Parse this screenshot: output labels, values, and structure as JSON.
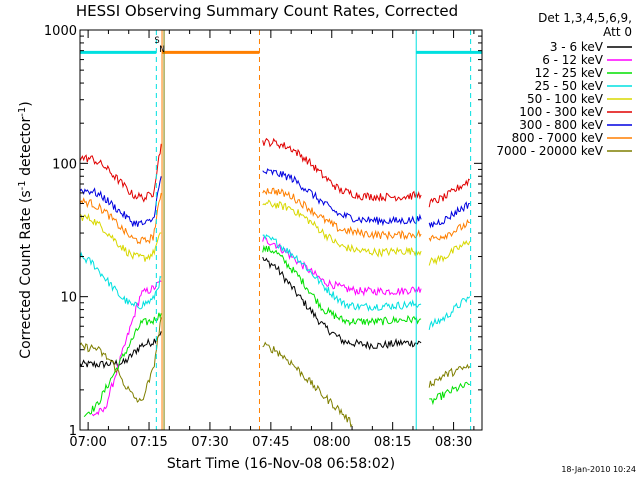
{
  "chart_data": {
    "type": "line",
    "title": "HESSI Observing Summary Count Rates, Corrected",
    "xlabel": "Start Time (16-Nov-08 06:58:02)",
    "ylabel": "Corrected Count Rate (s⁻¹ detector⁻¹)",
    "ylabel_main": "Corrected Count Rate (s",
    "ylabel_sup1": "-1",
    "ylabel_mid": " detector",
    "ylabel_sup2": "-1",
    "ylabel_end": ")",
    "y_scale": "log",
    "ylim": [
      1,
      1000
    ],
    "xlim_minutes_after_0700": [
      -2,
      97
    ],
    "x_ticks": [
      "07:00",
      "07:15",
      "07:30",
      "07:45",
      "08:00",
      "08:15",
      "08:30"
    ],
    "y_ticks": [
      "1",
      "10",
      "100",
      "1000"
    ],
    "legend_header": [
      "Det 1,3,4,5,6,9,",
      "Att 0"
    ],
    "timestamp": "18-Jan-2010 10:24",
    "flags": {
      "saa_letter": "S",
      "night_letter": "N"
    },
    "series": [
      {
        "name": "3 - 6 keV",
        "color": "#000000",
        "segments": [
          [
            [
              -2,
              3.1
            ],
            [
              3,
              3.1
            ],
            [
              9,
              3.2
            ],
            [
              13,
              4.3
            ],
            [
              16,
              4.6
            ],
            [
              18,
              5.5
            ]
          ],
          [
            [
              43,
              19
            ],
            [
              46,
              17
            ],
            [
              52,
              10
            ],
            [
              58,
              6
            ],
            [
              63,
              4.6
            ],
            [
              67,
              4.4
            ],
            [
              72,
              4.3
            ],
            [
              77,
              4.5
            ],
            [
              82,
              4.5
            ]
          ]
        ]
      },
      {
        "name": "6 - 12 keV",
        "color": "#ff00ff",
        "segments": [
          [
            [
              1,
              1.3
            ],
            [
              4,
              1.4
            ],
            [
              13,
              10.5
            ],
            [
              16,
              11.5
            ],
            [
              18,
              13
            ]
          ],
          [
            [
              43,
              27
            ],
            [
              46,
              25
            ],
            [
              52,
              18
            ],
            [
              58,
              13
            ],
            [
              63,
              11.5
            ],
            [
              67,
              11
            ],
            [
              72,
              11
            ],
            [
              77,
              11
            ],
            [
              82,
              11.5
            ]
          ]
        ]
      },
      {
        "name": "12 - 25 keV",
        "color": "#00e000",
        "segments": [
          [
            [
              -1,
              1.3
            ],
            [
              2,
              1.5
            ],
            [
              13,
              6.3
            ],
            [
              16,
              6.6
            ],
            [
              18,
              7.5
            ]
          ],
          [
            [
              43,
              23
            ],
            [
              46,
              22
            ],
            [
              52,
              14
            ],
            [
              58,
              8
            ],
            [
              63,
              6.6
            ],
            [
              67,
              6.5
            ],
            [
              72,
              6.5
            ],
            [
              77,
              6.7
            ],
            [
              82,
              6.8
            ]
          ],
          [
            [
              84,
              1.6
            ],
            [
              87,
              1.8
            ],
            [
              90,
              2.0
            ],
            [
              94,
              2.2
            ]
          ]
        ]
      },
      {
        "name": "25 - 50 keV",
        "color": "#00e0e0",
        "segments": [
          [
            [
              -2,
              20
            ],
            [
              1,
              18
            ],
            [
              4,
              14
            ],
            [
              8,
              10
            ],
            [
              11,
              8.5
            ],
            [
              13,
              8.6
            ],
            [
              16,
              9.5
            ],
            [
              18,
              14
            ]
          ],
          [
            [
              43,
              28
            ],
            [
              46,
              26
            ],
            [
              52,
              19
            ],
            [
              58,
              12
            ],
            [
              63,
              8.8
            ],
            [
              67,
              8.4
            ],
            [
              72,
              8.5
            ],
            [
              77,
              8.6
            ],
            [
              82,
              8.8
            ]
          ],
          [
            [
              84,
              6
            ],
            [
              88,
              7
            ],
            [
              91,
              8.5
            ],
            [
              94,
              10
            ]
          ]
        ]
      },
      {
        "name": "50 - 100 keV",
        "color": "#d8d800",
        "segments": [
          [
            [
              -2,
              40
            ],
            [
              1,
              38
            ],
            [
              4,
              32
            ],
            [
              8,
              24
            ],
            [
              11,
              20
            ],
            [
              14,
              19.5
            ],
            [
              16,
              21
            ],
            [
              18,
              30
            ]
          ],
          [
            [
              43,
              50
            ],
            [
              46,
              49
            ],
            [
              50,
              46
            ],
            [
              54,
              38
            ],
            [
              58,
              30
            ],
            [
              62,
              24
            ],
            [
              67,
              22
            ],
            [
              72,
              21.5
            ],
            [
              77,
              22
            ],
            [
              82,
              22
            ]
          ],
          [
            [
              84,
              18
            ],
            [
              88,
              20
            ],
            [
              91,
              23
            ],
            [
              94,
              26
            ]
          ]
        ]
      },
      {
        "name": "100 - 300 keV",
        "color": "#e00000",
        "segments": [
          [
            [
              -2,
              110
            ],
            [
              1,
              108
            ],
            [
              4,
              95
            ],
            [
              8,
              72
            ],
            [
              11,
              58
            ],
            [
              14,
              55
            ],
            [
              16,
              60
            ],
            [
              18,
              140
            ]
          ],
          [
            [
              43,
              145
            ],
            [
              46,
              143
            ],
            [
              50,
              130
            ],
            [
              54,
              105
            ],
            [
              58,
              80
            ],
            [
              62,
              63
            ],
            [
              67,
              57
            ],
            [
              72,
              56
            ],
            [
              77,
              56
            ],
            [
              82,
              58
            ]
          ],
          [
            [
              84,
              50
            ],
            [
              88,
              56
            ],
            [
              91,
              65
            ],
            [
              94,
              75
            ]
          ]
        ]
      },
      {
        "name": "300 - 800 keV",
        "color": "#0000e0",
        "segments": [
          [
            [
              -2,
              63
            ],
            [
              1,
              62
            ],
            [
              4,
              55
            ],
            [
              8,
              43
            ],
            [
              11,
              36
            ],
            [
              14,
              35
            ],
            [
              16,
              38
            ],
            [
              18,
              80
            ]
          ],
          [
            [
              43,
              86
            ],
            [
              46,
              85
            ],
            [
              50,
              78
            ],
            [
              54,
              63
            ],
            [
              58,
              50
            ],
            [
              62,
              41
            ],
            [
              67,
              38
            ],
            [
              72,
              37
            ],
            [
              77,
              37
            ],
            [
              82,
              38
            ]
          ],
          [
            [
              84,
              34
            ],
            [
              88,
              38
            ],
            [
              91,
              44
            ],
            [
              94,
              50
            ]
          ]
        ]
      },
      {
        "name": "800 - 7000 keV",
        "color": "#ff7f00",
        "segments": [
          [
            [
              -2,
              52
            ],
            [
              1,
              50
            ],
            [
              4,
              44
            ],
            [
              8,
              33
            ],
            [
              11,
              27
            ],
            [
              14,
              26
            ],
            [
              16,
              28
            ],
            [
              18,
              60
            ]
          ],
          [
            [
              43,
              63
            ],
            [
              46,
              62
            ],
            [
              50,
              57
            ],
            [
              54,
              47
            ],
            [
              58,
              38
            ],
            [
              62,
              32
            ],
            [
              67,
              30
            ],
            [
              72,
              29
            ],
            [
              77,
              29
            ],
            [
              82,
              29.5
            ]
          ],
          [
            [
              84,
              27
            ],
            [
              88,
              29
            ],
            [
              91,
              32
            ],
            [
              94,
              36
            ]
          ]
        ]
      },
      {
        "name": "7000 - 20000 keV",
        "color": "#7f7f00",
        "segments": [
          [
            [
              -2,
              4.2
            ],
            [
              2,
              4.1
            ],
            [
              6,
              3.2
            ],
            [
              9,
              2.2
            ],
            [
              11,
              1.8
            ],
            [
              13,
              1.6
            ],
            [
              16,
              2.8
            ],
            [
              18,
              7
            ]
          ],
          [
            [
              43,
              4.3
            ],
            [
              46,
              4.0
            ],
            [
              50,
              3.2
            ],
            [
              54,
              2.4
            ],
            [
              58,
              1.8
            ],
            [
              62,
              1.4
            ],
            [
              65,
              1.1
            ]
          ],
          [
            [
              84,
              2.2
            ],
            [
              88,
              2.6
            ],
            [
              91,
              2.8
            ],
            [
              94,
              3.0
            ]
          ]
        ]
      }
    ],
    "flag_bars": [
      {
        "name": "saa",
        "color": "#00e0e0",
        "level": 680,
        "ranges": [
          [
            -2,
            16.8
          ],
          [
            80.8,
            97
          ]
        ]
      },
      {
        "name": "attenuator",
        "color": "#ff7f00",
        "level": 680,
        "ranges": [
          [
            18.2,
            42.2
          ]
        ]
      }
    ],
    "vertical_markers": [
      {
        "minute": 16.8,
        "color": "#00e0e0",
        "style": "dashed"
      },
      {
        "minute": 18.2,
        "color": "#ff7f00",
        "style": "solid"
      },
      {
        "minute": 18.7,
        "color": "#7f7f00",
        "style": "solid"
      },
      {
        "minute": 42.2,
        "color": "#ff7f00",
        "style": "dashed"
      },
      {
        "minute": 80.8,
        "color": "#00e0e0",
        "style": "solid"
      },
      {
        "minute": 94.2,
        "color": "#00e0e0",
        "style": "dashed"
      }
    ]
  }
}
